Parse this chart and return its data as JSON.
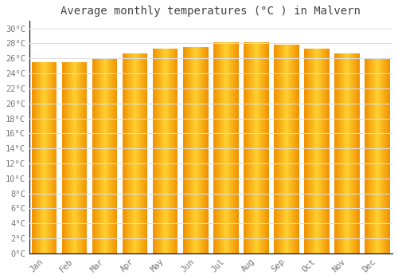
{
  "title": "Average monthly temperatures (°C ) in Malvern",
  "months": [
    "Jan",
    "Feb",
    "Mar",
    "Apr",
    "May",
    "Jun",
    "Jul",
    "Aug",
    "Sep",
    "Oct",
    "Nov",
    "Dec"
  ],
  "values": [
    25.5,
    25.5,
    26.0,
    26.7,
    27.3,
    27.5,
    28.2,
    28.2,
    27.8,
    27.3,
    26.7,
    26.0
  ],
  "bar_color_center": "#FFD030",
  "bar_color_edge": "#F09000",
  "ytick_labels": [
    "0°C",
    "2°C",
    "4°C",
    "6°C",
    "8°C",
    "10°C",
    "12°C",
    "14°C",
    "16°C",
    "18°C",
    "20°C",
    "22°C",
    "24°C",
    "26°C",
    "28°C",
    "30°C"
  ],
  "ytick_values": [
    0,
    2,
    4,
    6,
    8,
    10,
    12,
    14,
    16,
    18,
    20,
    22,
    24,
    26,
    28,
    30
  ],
  "ylim": [
    0,
    31
  ],
  "background_color": "#ffffff",
  "grid_color": "#dddddd",
  "title_fontsize": 10,
  "tick_fontsize": 7.5,
  "font_family": "monospace"
}
